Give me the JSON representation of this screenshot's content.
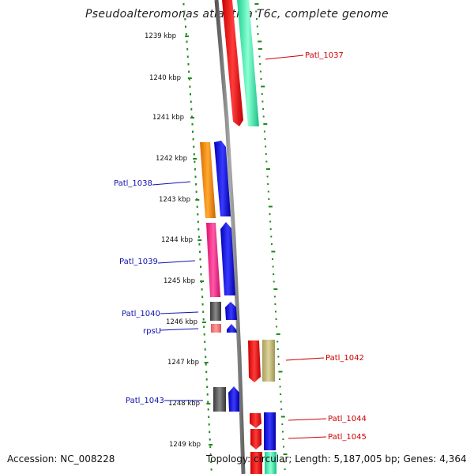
{
  "title": "Pseudoalteromonas atlantica T6c, complete genome",
  "accession": "Accession: NC_008228",
  "topology": "Topology: circular; Length: 5,187,005 bp; Genes: 4,364",
  "scale_labels": [
    "1239 kbp",
    "1240 kbp",
    "1241 kbp",
    "1242 kbp",
    "1243 kbp",
    "1244 kbp",
    "1245 kbp",
    "1246 kbp",
    "1247 kbp",
    "1248 kbp",
    "1249 kbp"
  ],
  "gene_labels": {
    "left": [
      "Patl_1038",
      "Patl_1039",
      "Patl_1040",
      "rpsU",
      "Patl_1043"
    ],
    "right": [
      "Patl_1037",
      "Patl_1042",
      "Patl_1044",
      "Patl_1045"
    ]
  },
  "colors": {
    "forward_label": "#1010b0",
    "reverse_label": "#cc0000",
    "dots": "#1e8a1e",
    "backbone": "#888888"
  }
}
